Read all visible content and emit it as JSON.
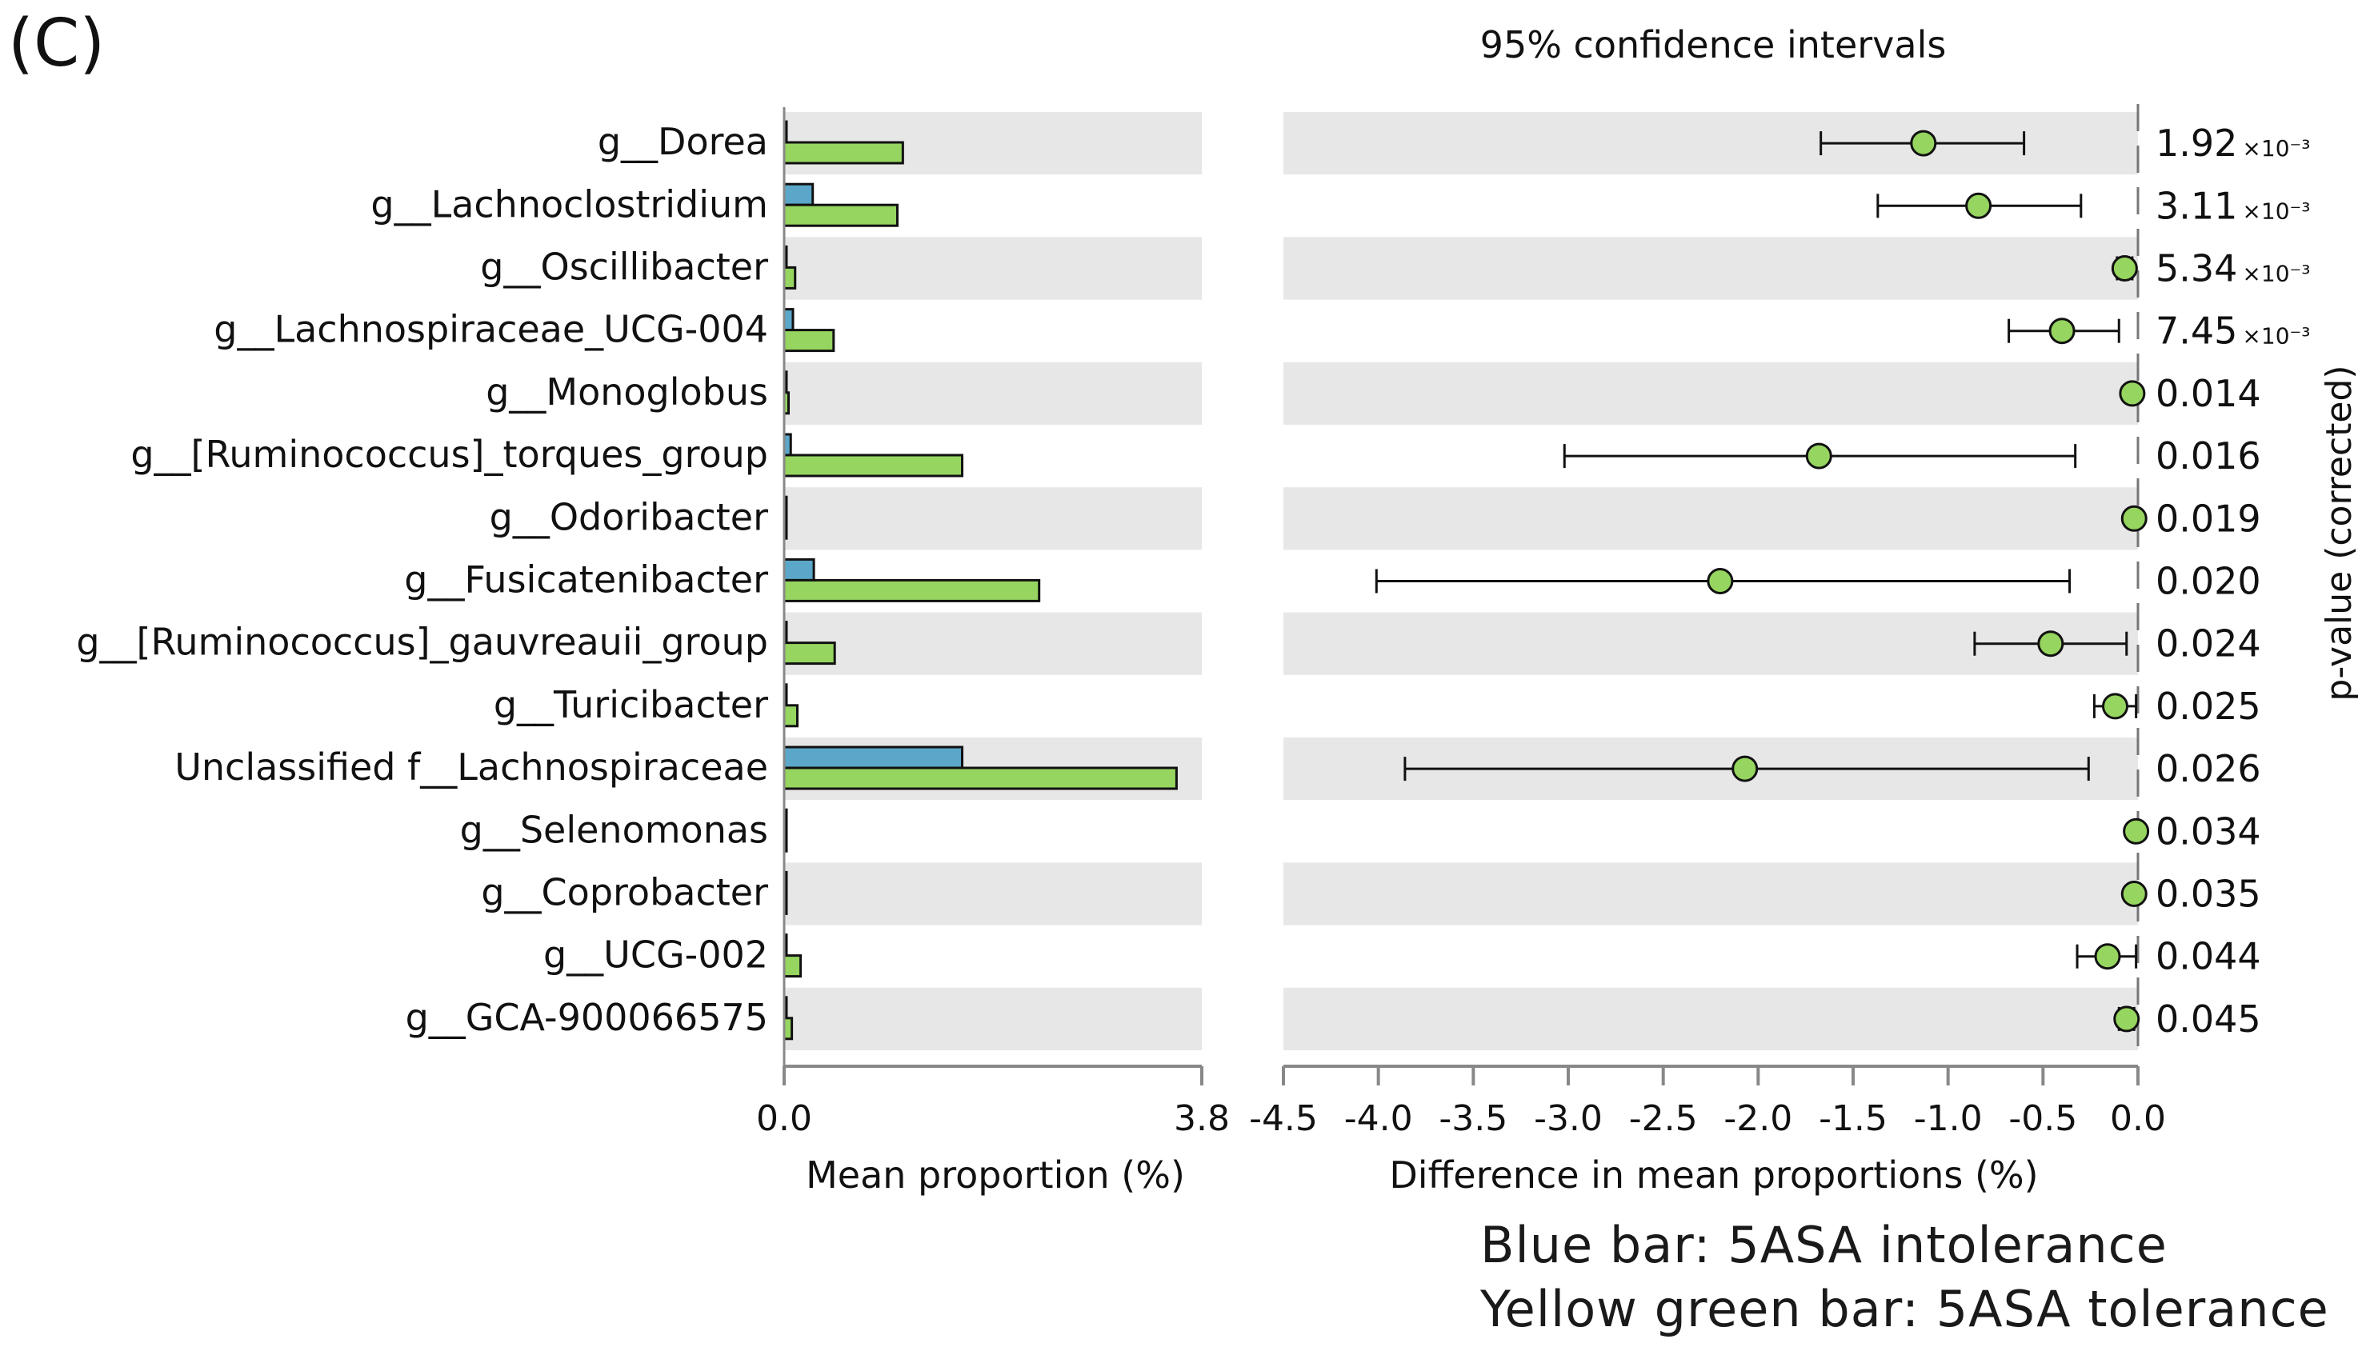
{
  "chart_data": {
    "type": "extended-error-bar",
    "panel_label": "(C)",
    "ci_title": "95% confidence intervals",
    "left_xlabel": "Mean proportion (%)",
    "right_xlabel": "Difference in mean proportions (%)",
    "pvalue_label": "p-value (corrected)",
    "left_xlim": [
      0.0,
      3.8
    ],
    "left_tick_labels": [
      "0.0",
      "3.8"
    ],
    "right_xlim": [
      -4.5,
      0.0
    ],
    "right_ticks": [
      -4.5,
      -4.0,
      -3.5,
      -3.0,
      -2.5,
      -2.0,
      -1.5,
      -1.0,
      -0.5,
      0.0
    ],
    "right_tick_labels": [
      "-4.5",
      "-4.0",
      "-3.5",
      "-3.0",
      "-2.5",
      "-2.0",
      "-1.5",
      "-1.0",
      "-0.5",
      "0.0"
    ],
    "series": [
      {
        "name": "5ASA intolerance",
        "color": "#5ba7c9"
      },
      {
        "name": "5ASA tolerance",
        "color": "#96d55f"
      }
    ],
    "legend": [
      "Blue bar: 5ASA intolerance",
      "Yellow green bar: 5ASA tolerance"
    ],
    "rows": [
      {
        "label": "g__Dorea",
        "blue": 0.0,
        "green": 1.08,
        "diff": -1.13,
        "ci": [
          -1.67,
          -0.6
        ],
        "p_mant": "1.92",
        "p_exp": "×10⁻³"
      },
      {
        "label": "g__Lachnoclostridium",
        "blue": 0.26,
        "green": 1.03,
        "diff": -0.84,
        "ci": [
          -1.37,
          -0.3
        ],
        "p_mant": "3.11",
        "p_exp": "×10⁻³"
      },
      {
        "label": "g__Oscillibacter",
        "blue": 0.02,
        "green": 0.1,
        "diff": -0.07,
        "ci": [
          -0.11,
          -0.03
        ],
        "p_mant": "5.34",
        "p_exp": "×10⁻³"
      },
      {
        "label": "g__Lachnospiraceae_UCG-004",
        "blue": 0.08,
        "green": 0.45,
        "diff": -0.4,
        "ci": [
          -0.68,
          -0.1
        ],
        "p_mant": "7.45",
        "p_exp": "×10⁻³"
      },
      {
        "label": "g__Monoglobus",
        "blue": 0.02,
        "green": 0.04,
        "diff": -0.03,
        "ci": [
          -0.05,
          -0.01
        ],
        "p_mant": "0.014",
        "p_exp": ""
      },
      {
        "label": "g__[Ruminococcus]_torques_group",
        "blue": 0.06,
        "green": 1.62,
        "diff": -1.68,
        "ci": [
          -3.02,
          -0.33
        ],
        "p_mant": "0.016",
        "p_exp": ""
      },
      {
        "label": "g__Odoribacter",
        "blue": 0.01,
        "green": 0.02,
        "diff": -0.02,
        "ci": [
          -0.03,
          -0.01
        ],
        "p_mant": "0.019",
        "p_exp": ""
      },
      {
        "label": "g__Fusicatenibacter",
        "blue": 0.27,
        "green": 2.32,
        "diff": -2.2,
        "ci": [
          -4.01,
          -0.36
        ],
        "p_mant": "0.020",
        "p_exp": ""
      },
      {
        "label": "g__[Ruminococcus]_gauvreauii_group",
        "blue": 0.0,
        "green": 0.46,
        "diff": -0.46,
        "ci": [
          -0.86,
          -0.06
        ],
        "p_mant": "0.024",
        "p_exp": ""
      },
      {
        "label": "g__Turicibacter",
        "blue": 0.01,
        "green": 0.12,
        "diff": -0.12,
        "ci": [
          -0.23,
          -0.01
        ],
        "p_mant": "0.025",
        "p_exp": ""
      },
      {
        "label": "Unclassified f__Lachnospiraceae",
        "blue": 1.62,
        "green": 3.57,
        "diff": -2.07,
        "ci": [
          -3.86,
          -0.26
        ],
        "p_mant": "0.026",
        "p_exp": ""
      },
      {
        "label": "g__Selenomonas",
        "blue": 0.0,
        "green": 0.01,
        "diff": -0.01,
        "ci": [
          -0.02,
          0.0
        ],
        "p_mant": "0.034",
        "p_exp": ""
      },
      {
        "label": "g__Coprobacter",
        "blue": 0.01,
        "green": 0.02,
        "diff": -0.02,
        "ci": [
          -0.03,
          -0.01
        ],
        "p_mant": "0.035",
        "p_exp": ""
      },
      {
        "label": "g__UCG-002",
        "blue": 0.01,
        "green": 0.15,
        "diff": -0.16,
        "ci": [
          -0.32,
          -0.01
        ],
        "p_mant": "0.044",
        "p_exp": ""
      },
      {
        "label": "g__GCA-900066575",
        "blue": 0.02,
        "green": 0.07,
        "diff": -0.06,
        "ci": [
          -0.1,
          -0.02
        ],
        "p_mant": "0.045",
        "p_exp": ""
      }
    ]
  }
}
